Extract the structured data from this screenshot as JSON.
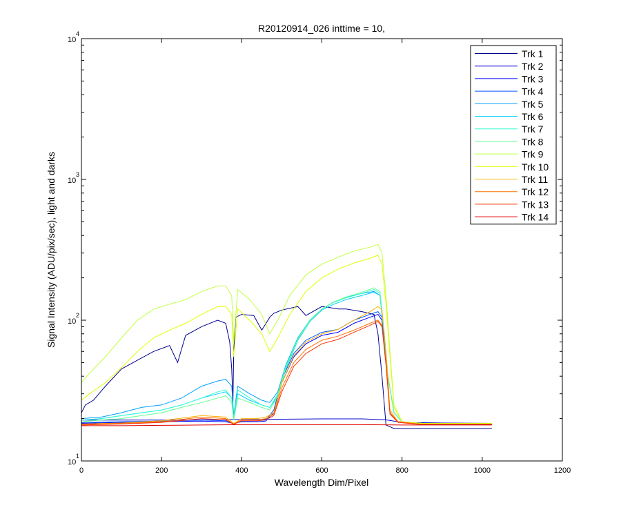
{
  "chart_data": {
    "type": "line",
    "title": "R20120914_026 inttime = 10,",
    "xlabel": "Wavelength Dim/Pixel",
    "ylabel": "Signal Intensity (ADU/pix/sec), light and darks",
    "xlim": [
      0,
      1200
    ],
    "ylim": [
      10,
      10000
    ],
    "yscale": "log",
    "grid": false,
    "legend_position": "top-right",
    "x_ticks": [
      "0",
      "200",
      "400",
      "600",
      "800",
      "1000",
      "1200"
    ],
    "y_ticks": [
      {
        "value": 10,
        "base": "10",
        "exp": "1"
      },
      {
        "value": 100,
        "base": "10",
        "exp": "2"
      },
      {
        "value": 1000,
        "base": "10",
        "exp": "3"
      },
      {
        "value": 10000,
        "base": "10",
        "exp": "4"
      }
    ],
    "series": [
      {
        "name": "Trk 1",
        "color": "#00008F",
        "x": [
          0,
          10,
          30,
          60,
          100,
          140,
          180,
          220,
          240,
          260,
          300,
          340,
          360,
          370,
          375,
          378,
          380,
          385,
          400,
          430,
          450,
          470,
          480,
          500,
          540,
          560,
          600,
          620,
          640,
          660,
          700,
          730,
          740,
          750,
          760,
          770,
          780,
          800,
          850,
          900,
          950,
          1000,
          1024
        ],
        "y": [
          22,
          25,
          27,
          34,
          45,
          52,
          60,
          66,
          50,
          78,
          90,
          100,
          95,
          70,
          45,
          26,
          60,
          105,
          110,
          108,
          85,
          105,
          112,
          118,
          125,
          108,
          125,
          123,
          120,
          120,
          115,
          110,
          80,
          40,
          18,
          17.5,
          17,
          17,
          17,
          17,
          17,
          17,
          17
        ]
      },
      {
        "name": "Trk 2",
        "color": "#0000CC",
        "x": [
          0,
          100,
          200,
          300,
          400,
          500,
          600,
          700,
          760,
          780,
          800,
          900,
          1024
        ],
        "y": [
          19.5,
          19.5,
          19.5,
          19.6,
          19.7,
          19.8,
          19.9,
          19.9,
          19.6,
          19.2,
          18.8,
          18.6,
          18.5
        ]
      },
      {
        "name": "Trk 3",
        "color": "#0000FF",
        "x": [
          0,
          100,
          200,
          300,
          360,
          380,
          400,
          440,
          460,
          480,
          500,
          530,
          560,
          600,
          640,
          680,
          720,
          740,
          750,
          760,
          770,
          790,
          850,
          900,
          1024
        ],
        "y": [
          18.5,
          18.8,
          19.0,
          19.2,
          19.0,
          18.5,
          19.0,
          19.0,
          19.2,
          22,
          36,
          55,
          68,
          78,
          82,
          95,
          105,
          110,
          100,
          50,
          22,
          19,
          18.4,
          18.3,
          18.3
        ]
      },
      {
        "name": "Trk 4",
        "color": "#0050FF",
        "x": [
          0,
          100,
          200,
          300,
          360,
          380,
          400,
          440,
          460,
          480,
          500,
          530,
          560,
          600,
          640,
          680,
          720,
          740,
          750,
          760,
          770,
          790,
          850,
          900,
          1024
        ],
        "y": [
          18.7,
          19.0,
          19.2,
          19.5,
          19.3,
          18.5,
          19.2,
          19.3,
          19.5,
          23,
          38,
          58,
          72,
          82,
          86,
          100,
          110,
          115,
          105,
          52,
          22,
          19,
          18.4,
          18.3,
          18.3
        ]
      },
      {
        "name": "Trk 5",
        "color": "#00A0FF",
        "x": [
          0,
          50,
          100,
          150,
          200,
          250,
          300,
          340,
          360,
          375,
          380,
          390,
          420,
          450,
          470,
          490,
          510,
          540,
          570,
          600,
          630,
          660,
          700,
          730,
          745,
          755,
          765,
          780,
          800,
          850,
          1024
        ],
        "y": [
          20,
          20.5,
          22,
          24,
          25,
          28,
          34,
          37,
          38,
          34,
          21,
          34,
          30,
          27,
          26,
          31,
          48,
          75,
          100,
          120,
          135,
          145,
          155,
          160,
          150,
          80,
          40,
          22,
          19,
          18.5,
          18.5
        ]
      },
      {
        "name": "Trk 6",
        "color": "#00D0FF",
        "x": [
          0,
          50,
          100,
          150,
          200,
          250,
          300,
          340,
          360,
          375,
          380,
          390,
          420,
          450,
          470,
          490,
          510,
          540,
          570,
          600,
          630,
          660,
          700,
          730,
          745,
          755,
          765,
          780,
          800,
          850,
          1024
        ],
        "y": [
          19.5,
          20,
          21,
          22,
          23,
          25,
          28,
          30,
          31,
          28,
          20,
          30,
          27,
          25,
          24,
          29,
          45,
          72,
          98,
          118,
          130,
          140,
          150,
          158,
          150,
          80,
          40,
          22,
          19,
          18.5,
          18.5
        ]
      },
      {
        "name": "Trk 7",
        "color": "#30FFD0",
        "x": [
          0,
          50,
          100,
          150,
          200,
          250,
          300,
          340,
          360,
          375,
          380,
          390,
          420,
          450,
          470,
          490,
          510,
          540,
          570,
          600,
          630,
          660,
          700,
          730,
          745,
          755,
          765,
          780,
          800,
          850,
          1024
        ],
        "y": [
          19.5,
          20,
          21,
          22,
          23,
          25,
          28,
          31,
          32,
          28,
          20,
          32,
          28,
          25,
          24,
          30,
          47,
          74,
          100,
          120,
          134,
          144,
          155,
          165,
          155,
          82,
          40,
          22,
          19,
          18.5,
          18.5
        ]
      },
      {
        "name": "Trk 8",
        "color": "#60FF90",
        "x": [
          0,
          50,
          100,
          150,
          200,
          250,
          300,
          340,
          360,
          375,
          380,
          390,
          420,
          450,
          470,
          490,
          510,
          540,
          570,
          600,
          630,
          660,
          700,
          730,
          745,
          755,
          765,
          780,
          800,
          850,
          1024
        ],
        "y": [
          19,
          19.5,
          20,
          21,
          22,
          24,
          26,
          28,
          29,
          26,
          19.5,
          28,
          26,
          24,
          23,
          29,
          46,
          73,
          99,
          120,
          135,
          146,
          158,
          170,
          160,
          85,
          40,
          22,
          19,
          18.5,
          18.5
        ]
      },
      {
        "name": "Trk 9",
        "color": "#C0FF40",
        "x": [
          0,
          20,
          60,
          100,
          140,
          180,
          220,
          260,
          300,
          340,
          360,
          375,
          380,
          390,
          420,
          450,
          470,
          490,
          520,
          560,
          600,
          640,
          680,
          720,
          740,
          750,
          760,
          770,
          780,
          800,
          850,
          1024
        ],
        "y": [
          36,
          42,
          55,
          75,
          100,
          120,
          130,
          140,
          160,
          175,
          175,
          150,
          70,
          165,
          140,
          110,
          80,
          100,
          150,
          210,
          250,
          280,
          310,
          330,
          345,
          300,
          150,
          60,
          25,
          19,
          18.5,
          18.5
        ]
      },
      {
        "name": "Trk 10",
        "color": "#E0FF00",
        "x": [
          0,
          20,
          60,
          100,
          140,
          180,
          220,
          260,
          300,
          340,
          360,
          375,
          380,
          390,
          420,
          450,
          470,
          490,
          520,
          560,
          600,
          640,
          680,
          720,
          740,
          750,
          760,
          770,
          780,
          800,
          850,
          1024
        ],
        "y": [
          27,
          30,
          36,
          46,
          60,
          75,
          85,
          95,
          110,
          125,
          125,
          110,
          55,
          120,
          100,
          80,
          60,
          75,
          110,
          160,
          200,
          230,
          255,
          275,
          290,
          250,
          130,
          55,
          24,
          19,
          18.5,
          18.5
        ]
      },
      {
        "name": "Trk 11",
        "color": "#FFB000",
        "x": [
          0,
          100,
          200,
          300,
          360,
          380,
          400,
          440,
          460,
          480,
          500,
          530,
          560,
          600,
          640,
          680,
          720,
          740,
          750,
          760,
          770,
          790,
          850,
          900,
          1024
        ],
        "y": [
          18.3,
          18.6,
          19.3,
          21,
          20.5,
          18.5,
          20,
          20,
          20.5,
          22,
          36,
          56,
          70,
          80,
          86,
          100,
          115,
          125,
          118,
          60,
          23,
          19,
          18.2,
          18.2,
          18.2
        ]
      },
      {
        "name": "Trk 12",
        "color": "#FF7000",
        "x": [
          0,
          100,
          200,
          300,
          360,
          380,
          400,
          440,
          460,
          480,
          500,
          530,
          560,
          600,
          640,
          680,
          720,
          740,
          750,
          760,
          770,
          790,
          850,
          900,
          1024
        ],
        "y": [
          18.2,
          18.5,
          19,
          20.5,
          20,
          18.3,
          19.6,
          19.6,
          20,
          21.5,
          33,
          50,
          62,
          72,
          77,
          85,
          95,
          100,
          92,
          50,
          22,
          19,
          18.2,
          18.2,
          18.2
        ]
      },
      {
        "name": "Trk 13",
        "color": "#FF3000",
        "x": [
          0,
          100,
          200,
          300,
          360,
          380,
          400,
          440,
          460,
          480,
          500,
          530,
          560,
          600,
          640,
          680,
          720,
          740,
          750,
          760,
          770,
          790,
          850,
          900,
          1024
        ],
        "y": [
          18,
          18.3,
          18.8,
          20,
          19.6,
          18.2,
          19.3,
          19.3,
          19.6,
          21,
          31,
          47,
          58,
          68,
          73,
          82,
          92,
          98,
          90,
          48,
          21.5,
          18.8,
          18.1,
          18.1,
          18.1
        ]
      },
      {
        "name": "Trk 14",
        "color": "#E00000",
        "x": [
          0,
          100,
          200,
          300,
          400,
          500,
          600,
          700,
          800,
          900,
          1024
        ],
        "y": [
          17.8,
          17.8,
          17.9,
          18,
          18.1,
          18.1,
          18.1,
          18.1,
          18,
          18,
          18
        ]
      }
    ]
  }
}
